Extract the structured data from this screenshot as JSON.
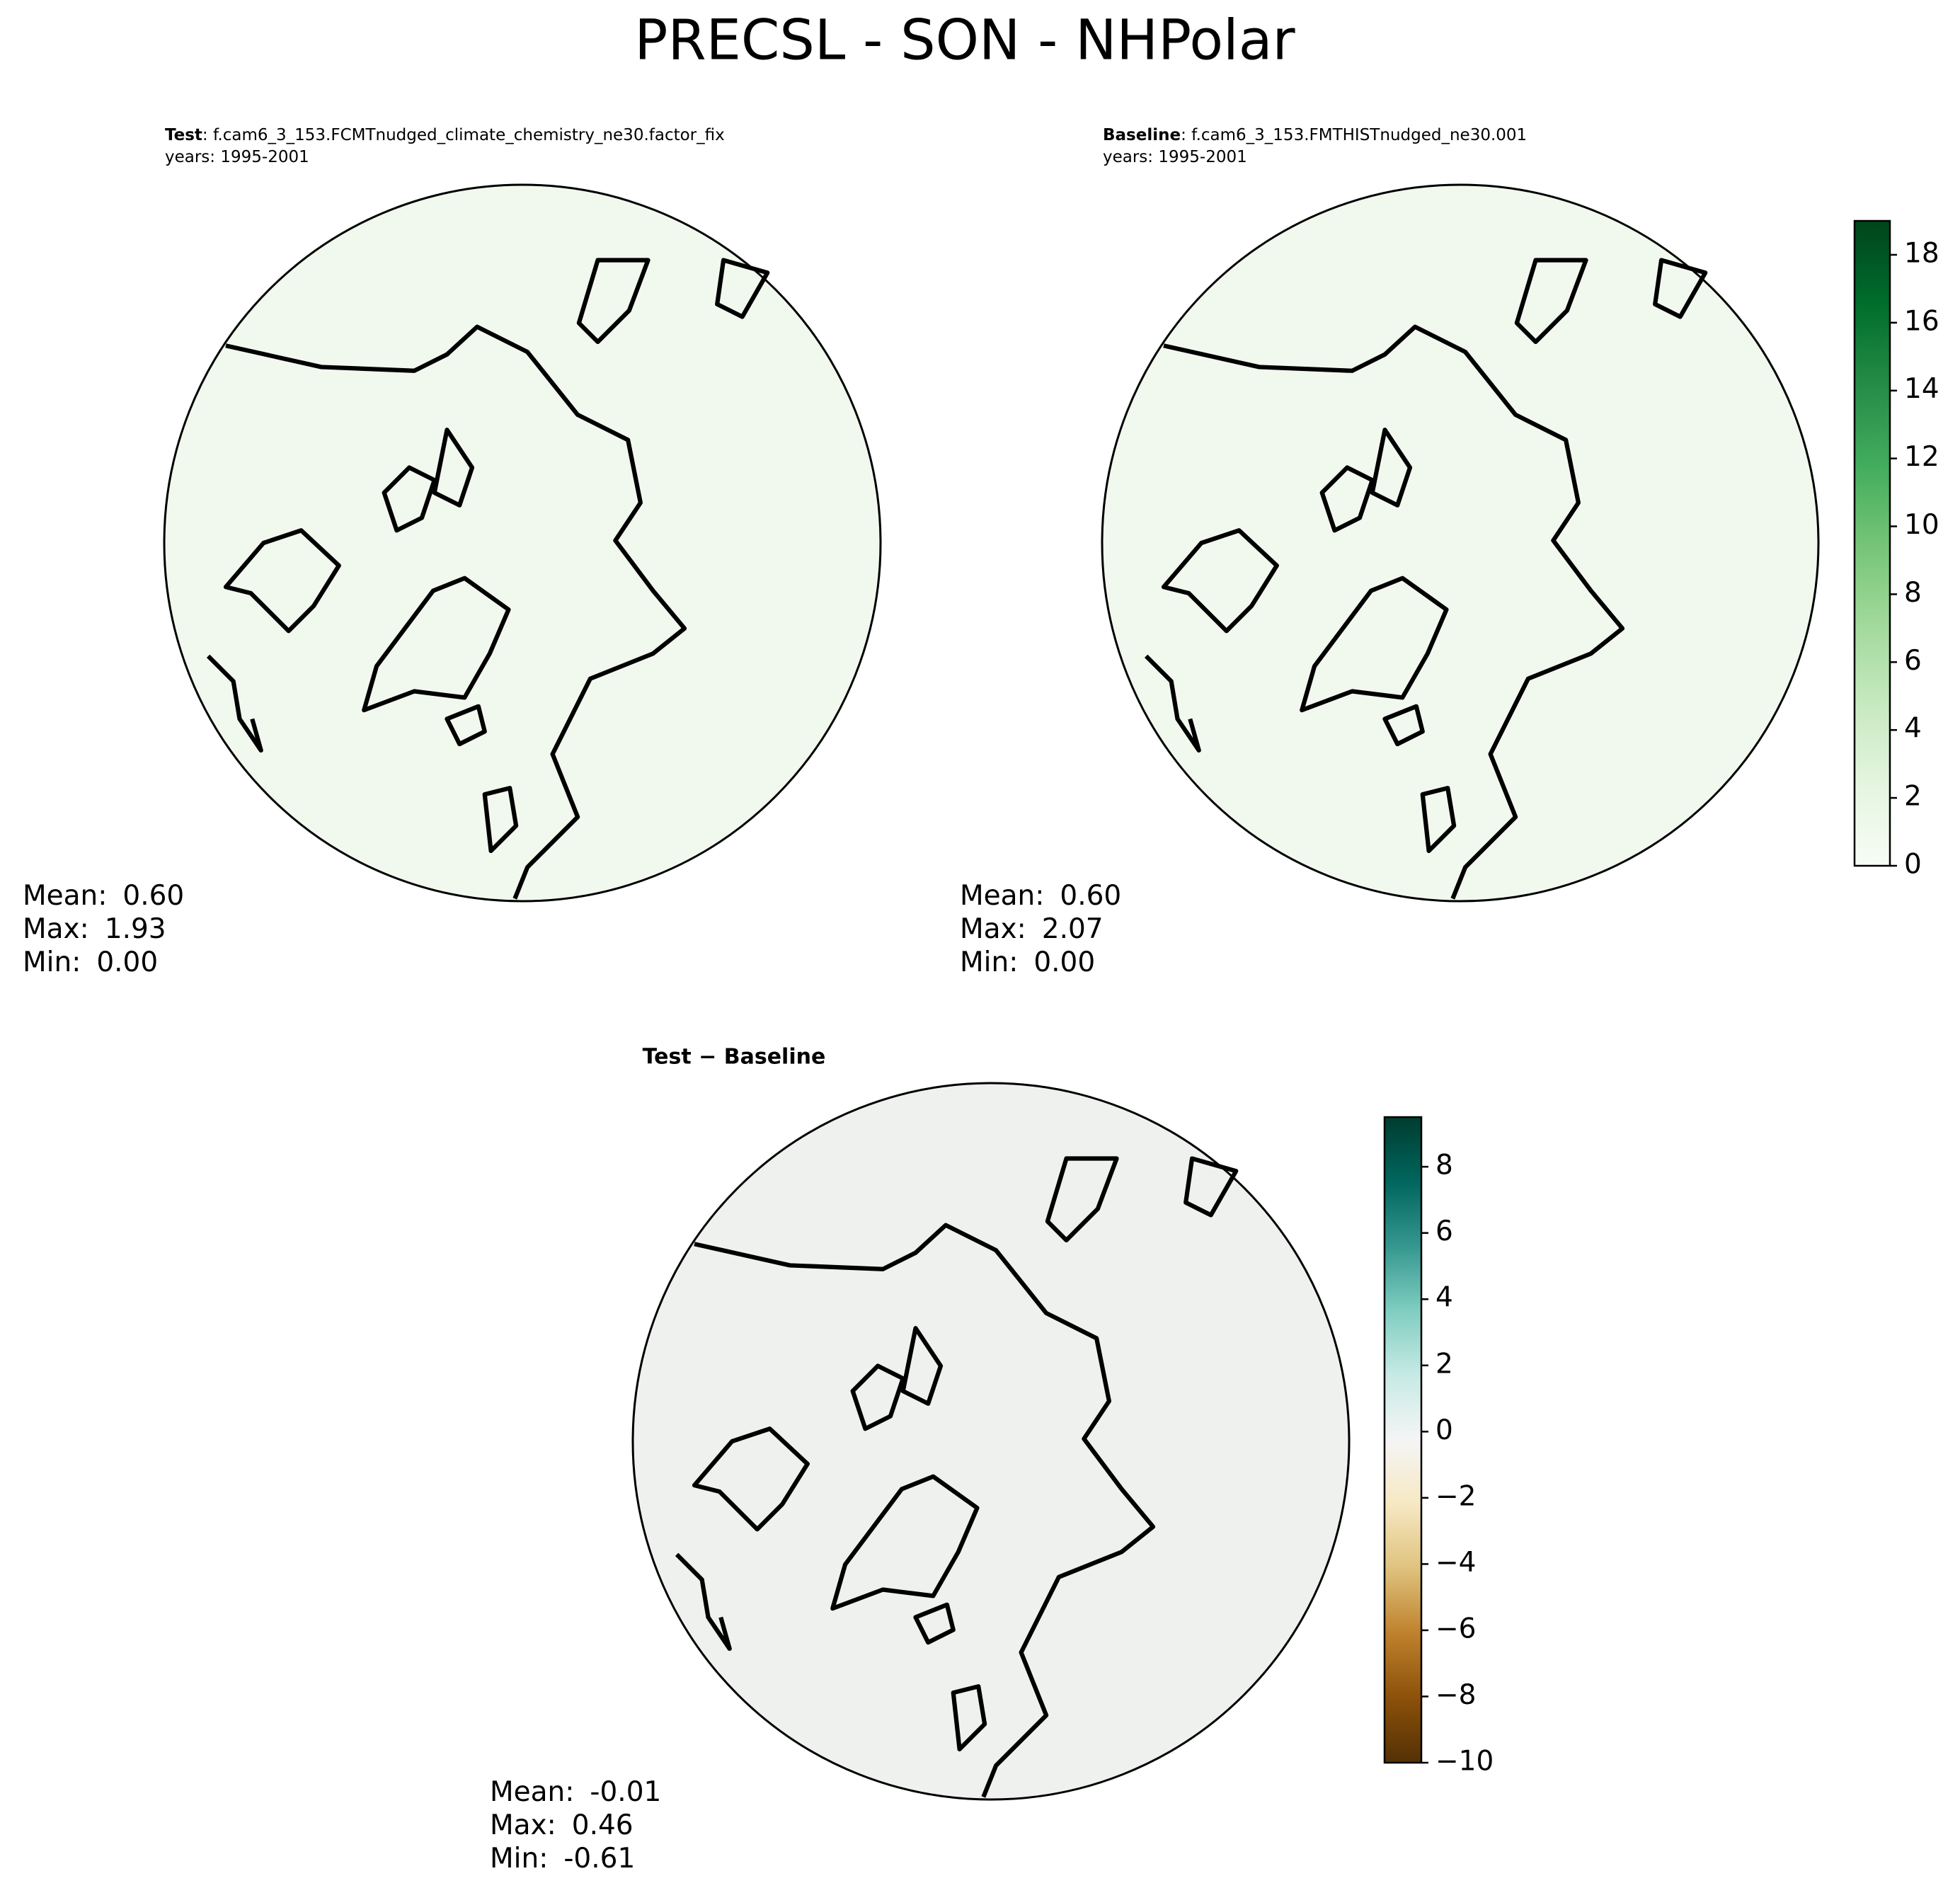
{
  "title": "PRECSL - SON - NHPolar",
  "panels": [
    {
      "label": "Test",
      "case": ": f.cam6_3_153.FCMTnudged_climate_chemistry_ne30.factor_fix",
      "years": "years: 1995-2001",
      "stats": [
        {
          "label": "Mean:",
          "value": "0.60"
        },
        {
          "label": "Max:",
          "value": "1.93"
        },
        {
          "label": "Min:",
          "value": "0.00"
        }
      ]
    },
    {
      "label": "Baseline",
      "case": ": f.cam6_3_153.FMTHISTnudged_ne30.001",
      "years": "years: 1995-2001",
      "stats": [
        {
          "label": "Mean:",
          "value": "0.60"
        },
        {
          "label": "Max:",
          "value": "2.07"
        },
        {
          "label": "Min:",
          "value": "0.00"
        }
      ]
    },
    {
      "label": "Test − Baseline",
      "stats": [
        {
          "label": "Mean:",
          "value": "-0.01"
        },
        {
          "label": "Max:",
          "value": "0.46"
        },
        {
          "label": "Min:",
          "value": "-0.61"
        }
      ]
    }
  ],
  "colorbars": [
    {
      "lim": [
        0,
        19
      ],
      "ticks": [
        0,
        2,
        4,
        6,
        8,
        10,
        12,
        14,
        16,
        18
      ],
      "colormap": [
        "#f7fcf5",
        "#e5f5e0",
        "#c7e9c0",
        "#a1d99b",
        "#74c476",
        "#41ab5d",
        "#238b45",
        "#006d2c",
        "#00441b"
      ]
    },
    {
      "lim": [
        -10,
        9.5
      ],
      "ticks": [
        {
          "value": -10,
          "label": "−10"
        },
        {
          "value": -8,
          "label": "−8"
        },
        {
          "value": -6,
          "label": "−6"
        },
        {
          "value": -4,
          "label": "−4"
        },
        {
          "value": -2,
          "label": "−2"
        },
        0,
        2,
        4,
        6,
        8
      ],
      "colormap": [
        "#543005",
        "#8c510a",
        "#bf812d",
        "#dfc27d",
        "#f6e8c3",
        "#f5f5f5",
        "#c7eae5",
        "#80cdc1",
        "#35978f",
        "#01665e",
        "#003c30"
      ]
    }
  ]
}
